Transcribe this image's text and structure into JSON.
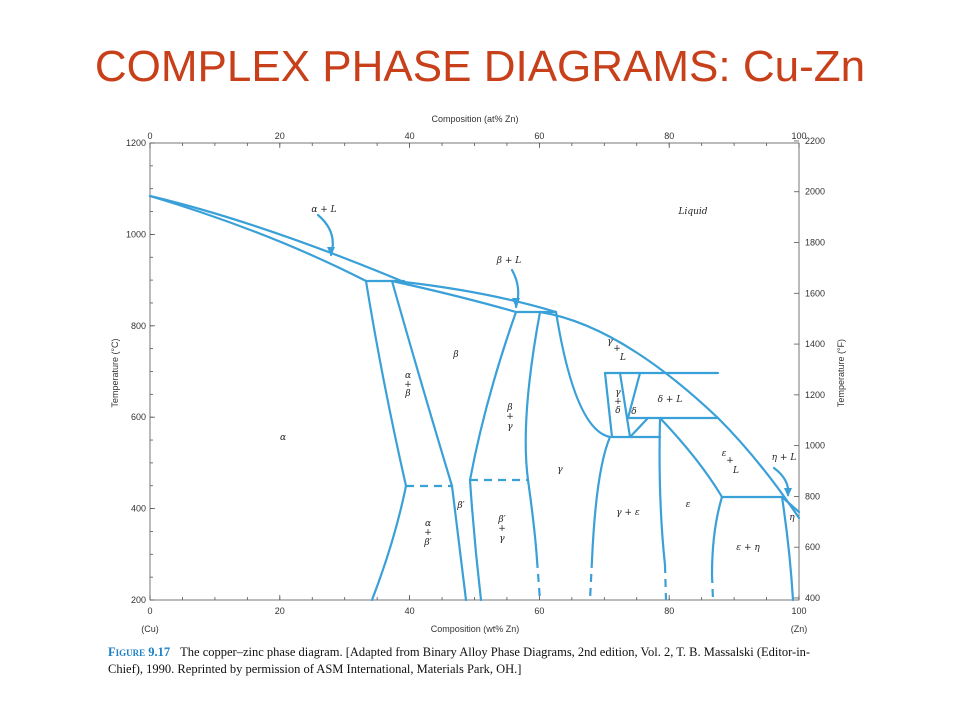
{
  "slide": {
    "title": "COMPLEX PHASE DIAGRAMS: Cu-Zn"
  },
  "diagram": {
    "top_axis_title": "Composition (at% Zn)",
    "bottom_axis_title": "Composition (wt% Zn)",
    "left_axis_title": "Temperature (°C)",
    "right_axis_title": "Temperature (°F)",
    "top_ticks": [
      "0",
      "20",
      "40",
      "60",
      "80",
      "100"
    ],
    "bottom_ticks": [
      "0",
      "20",
      "40",
      "60",
      "80",
      "100"
    ],
    "left_ticks": [
      "1200",
      "1000",
      "800",
      "600",
      "400",
      "200"
    ],
    "right_ticks": [
      "2200",
      "2000",
      "1800",
      "1600",
      "1400",
      "1200",
      "1000",
      "800",
      "600",
      "400"
    ],
    "end_labels": {
      "left": "(Cu)",
      "right": "(Zn)"
    },
    "colors": {
      "lines": "#3aa0d8",
      "title": "#c8401a",
      "fig_label": "#1a7fc4"
    },
    "phase_labels": {
      "liquid": "Liquid",
      "alpha_L": "α + L",
      "beta_L": "β + L",
      "alpha": "α",
      "beta": "β",
      "gamma": "γ",
      "delta": "δ",
      "delta_L": "δ + L",
      "epsilon": "ε",
      "eta": "η",
      "eta_L": "η + L",
      "gamma_eps": "γ + ε",
      "eps_eta": "ε + η",
      "alpha_beta": [
        "α",
        "+",
        "β"
      ],
      "alpha_betap": [
        "α",
        "+",
        "β′"
      ],
      "beta_gamma": [
        "β",
        "+",
        "γ"
      ],
      "betap_gamma": [
        "β′",
        "+",
        "γ"
      ],
      "gamma_L": [
        "γ",
        "+",
        "L"
      ],
      "gamma_delta": [
        "γ",
        "+",
        "δ"
      ],
      "eps_L": [
        "ε",
        "+",
        "L"
      ],
      "beta_prime": "β′"
    }
  },
  "caption": {
    "figure_label": "Figure 9.17",
    "text": "The copper–zinc phase diagram. [Adapted from Binary Alloy Phase Diagrams, 2nd edition, Vol. 2, T. B. Massalski (Editor-in-Chief), 1990. Reprinted by permission of ASM International, Materials Park, OH.]"
  }
}
